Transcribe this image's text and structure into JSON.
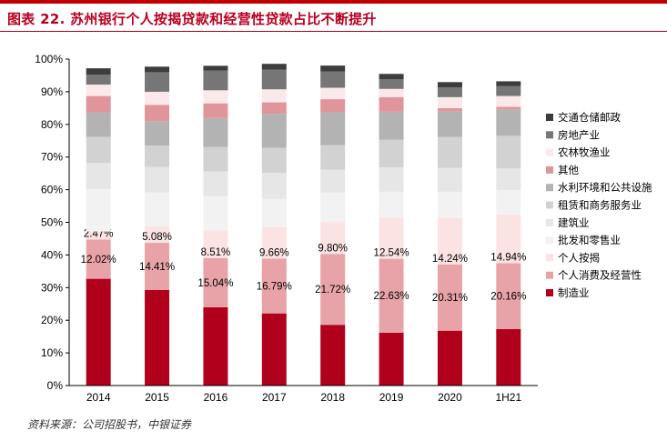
{
  "figure": {
    "title": "图表 22. 苏州银行个人按揭贷款和经营性贷款占比不断提升",
    "source": "资料来源：公司招股书，中银证券"
  },
  "chart_data": {
    "type": "bar",
    "stacked": true,
    "title": "",
    "xlabel": "",
    "ylabel": "",
    "ylim": [
      0,
      100
    ],
    "yticks": [
      "0%",
      "10%",
      "20%",
      "30%",
      "40%",
      "50%",
      "60%",
      "70%",
      "80%",
      "90%",
      "100%"
    ],
    "categories": [
      "2014",
      "2015",
      "2016",
      "2017",
      "2018",
      "2019",
      "2020",
      "1H21"
    ],
    "legend_position": "right",
    "series": [
      {
        "name": "制造业",
        "color": "#b0001c",
        "values": [
          32.7,
          29.3,
          24.0,
          22.1,
          18.6,
          16.2,
          16.8,
          17.3
        ]
      },
      {
        "name": "个人消费及经营性",
        "color": "#e8a3a8",
        "values": [
          12.02,
          14.41,
          15.04,
          16.79,
          21.72,
          22.63,
          20.31,
          20.16
        ],
        "labels": [
          "12.02%",
          "14.41%",
          "15.04%",
          "16.79%",
          "21.72%",
          "22.63%",
          "20.31%",
          "20.16%"
        ]
      },
      {
        "name": "个人按揭",
        "color": "#fbe3e3",
        "values": [
          2.47,
          5.08,
          8.51,
          9.66,
          9.8,
          12.54,
          14.24,
          14.94
        ],
        "labels": [
          "2.47%",
          "5.08%",
          "8.51%",
          "9.66%",
          "9.80%",
          "12.54%",
          "14.24%",
          "14.94%"
        ]
      },
      {
        "name": "批发和零售业",
        "color": "#f2f2f2",
        "values": [
          13.0,
          10.4,
          10.4,
          8.6,
          9.0,
          8.0,
          8.0,
          7.5
        ]
      },
      {
        "name": "建筑业",
        "color": "#e6e6e6",
        "values": [
          8.0,
          7.8,
          7.7,
          8.0,
          7.0,
          7.5,
          7.3,
          6.6
        ]
      },
      {
        "name": "租赁和商务服务业",
        "color": "#d2d2d2",
        "values": [
          8.0,
          6.5,
          7.4,
          7.7,
          7.5,
          8.4,
          9.5,
          10.0
        ]
      },
      {
        "name": "水利环境和公共设施",
        "color": "#b3b3b3",
        "values": [
          7.5,
          7.5,
          8.9,
          10.4,
          10.1,
          8.6,
          7.8,
          8.1
        ]
      },
      {
        "name": "其他",
        "color": "#e0959b",
        "values": [
          5.0,
          5.0,
          4.5,
          3.5,
          4.0,
          4.5,
          1.0,
          0.8
        ]
      },
      {
        "name": "农林牧渔业",
        "color": "#fbe8ea",
        "values": [
          3.5,
          4.0,
          4.0,
          4.0,
          3.5,
          2.5,
          3.4,
          3.3
        ]
      },
      {
        "name": "房地产业",
        "color": "#767676",
        "values": [
          3.0,
          6.0,
          6.0,
          6.0,
          5.0,
          3.0,
          3.0,
          3.0
        ]
      },
      {
        "name": "交通仓储邮政",
        "color": "#3d3d3d",
        "values": [
          2.0,
          1.7,
          1.5,
          1.8,
          1.8,
          1.6,
          1.6,
          1.5
        ]
      }
    ]
  }
}
